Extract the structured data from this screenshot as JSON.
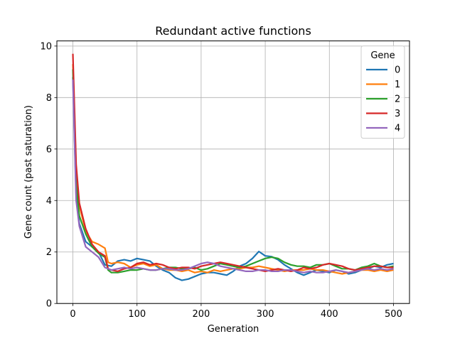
{
  "chart_data": {
    "type": "line",
    "title": "Redundant active functions",
    "xlabel": "Generation",
    "ylabel": "Gene count (past saturation)",
    "xlim": [
      -25,
      525
    ],
    "ylim": [
      0,
      10.2
    ],
    "xticks": [
      0,
      100,
      200,
      300,
      400,
      500
    ],
    "yticks": [
      0,
      2,
      4,
      6,
      8,
      10
    ],
    "grid": true,
    "legend": {
      "title": "Gene",
      "placement": "top-right"
    },
    "series": [
      {
        "name": "0",
        "color": "#1f77b4",
        "points": [
          [
            0,
            8.8
          ],
          [
            5,
            4.2
          ],
          [
            10,
            3.1
          ],
          [
            20,
            2.4
          ],
          [
            30,
            2.2
          ],
          [
            40,
            2.0
          ],
          [
            50,
            1.5
          ],
          [
            60,
            1.45
          ],
          [
            70,
            1.65
          ],
          [
            80,
            1.7
          ],
          [
            90,
            1.65
          ],
          [
            100,
            1.75
          ],
          [
            110,
            1.7
          ],
          [
            120,
            1.65
          ],
          [
            130,
            1.45
          ],
          [
            140,
            1.3
          ],
          [
            150,
            1.2
          ],
          [
            160,
            1.0
          ],
          [
            170,
            0.9
          ],
          [
            180,
            0.95
          ],
          [
            190,
            1.05
          ],
          [
            200,
            1.15
          ],
          [
            210,
            1.2
          ],
          [
            220,
            1.2
          ],
          [
            230,
            1.15
          ],
          [
            240,
            1.1
          ],
          [
            250,
            1.25
          ],
          [
            260,
            1.45
          ],
          [
            270,
            1.55
          ],
          [
            280,
            1.75
          ],
          [
            290,
            2.02
          ],
          [
            300,
            1.85
          ],
          [
            310,
            1.82
          ],
          [
            320,
            1.7
          ],
          [
            330,
            1.5
          ],
          [
            340,
            1.35
          ],
          [
            350,
            1.2
          ],
          [
            360,
            1.1
          ],
          [
            370,
            1.2
          ],
          [
            380,
            1.3
          ],
          [
            390,
            1.25
          ],
          [
            400,
            1.2
          ],
          [
            410,
            1.3
          ],
          [
            420,
            1.25
          ],
          [
            430,
            1.15
          ],
          [
            440,
            1.2
          ],
          [
            450,
            1.3
          ],
          [
            460,
            1.35
          ],
          [
            470,
            1.45
          ],
          [
            480,
            1.4
          ],
          [
            490,
            1.5
          ],
          [
            500,
            1.55
          ]
        ]
      },
      {
        "name": "1",
        "color": "#ff7f0e",
        "points": [
          [
            0,
            9.3
          ],
          [
            5,
            5.2
          ],
          [
            10,
            3.8
          ],
          [
            20,
            2.8
          ],
          [
            30,
            2.4
          ],
          [
            40,
            2.3
          ],
          [
            50,
            2.15
          ],
          [
            55,
            1.6
          ],
          [
            60,
            1.55
          ],
          [
            70,
            1.6
          ],
          [
            80,
            1.55
          ],
          [
            90,
            1.4
          ],
          [
            100,
            1.5
          ],
          [
            110,
            1.55
          ],
          [
            120,
            1.45
          ],
          [
            130,
            1.5
          ],
          [
            140,
            1.35
          ],
          [
            150,
            1.3
          ],
          [
            160,
            1.3
          ],
          [
            170,
            1.25
          ],
          [
            180,
            1.3
          ],
          [
            190,
            1.2
          ],
          [
            200,
            1.25
          ],
          [
            210,
            1.2
          ],
          [
            220,
            1.3
          ],
          [
            230,
            1.25
          ],
          [
            240,
            1.3
          ],
          [
            250,
            1.35
          ],
          [
            260,
            1.35
          ],
          [
            270,
            1.4
          ],
          [
            280,
            1.4
          ],
          [
            290,
            1.45
          ],
          [
            300,
            1.4
          ],
          [
            310,
            1.35
          ],
          [
            320,
            1.3
          ],
          [
            330,
            1.25
          ],
          [
            340,
            1.3
          ],
          [
            350,
            1.3
          ],
          [
            360,
            1.3
          ],
          [
            370,
            1.35
          ],
          [
            380,
            1.3
          ],
          [
            390,
            1.3
          ],
          [
            400,
            1.25
          ],
          [
            410,
            1.2
          ],
          [
            420,
            1.15
          ],
          [
            430,
            1.2
          ],
          [
            440,
            1.25
          ],
          [
            450,
            1.3
          ],
          [
            460,
            1.3
          ],
          [
            470,
            1.25
          ],
          [
            480,
            1.3
          ],
          [
            490,
            1.25
          ],
          [
            500,
            1.3
          ]
        ]
      },
      {
        "name": "2",
        "color": "#2ca02c",
        "points": [
          [
            0,
            9.1
          ],
          [
            5,
            4.6
          ],
          [
            10,
            3.4
          ],
          [
            20,
            2.7
          ],
          [
            30,
            2.2
          ],
          [
            40,
            1.95
          ],
          [
            50,
            1.8
          ],
          [
            55,
            1.3
          ],
          [
            60,
            1.2
          ],
          [
            70,
            1.2
          ],
          [
            80,
            1.25
          ],
          [
            90,
            1.3
          ],
          [
            100,
            1.3
          ],
          [
            110,
            1.35
          ],
          [
            120,
            1.3
          ],
          [
            130,
            1.3
          ],
          [
            140,
            1.35
          ],
          [
            150,
            1.4
          ],
          [
            160,
            1.4
          ],
          [
            170,
            1.35
          ],
          [
            180,
            1.35
          ],
          [
            190,
            1.4
          ],
          [
            200,
            1.3
          ],
          [
            210,
            1.35
          ],
          [
            220,
            1.45
          ],
          [
            230,
            1.55
          ],
          [
            240,
            1.5
          ],
          [
            250,
            1.45
          ],
          [
            260,
            1.4
          ],
          [
            270,
            1.45
          ],
          [
            280,
            1.55
          ],
          [
            290,
            1.65
          ],
          [
            300,
            1.75
          ],
          [
            310,
            1.8
          ],
          [
            320,
            1.75
          ],
          [
            330,
            1.6
          ],
          [
            340,
            1.5
          ],
          [
            350,
            1.45
          ],
          [
            360,
            1.45
          ],
          [
            370,
            1.4
          ],
          [
            380,
            1.5
          ],
          [
            390,
            1.5
          ],
          [
            400,
            1.55
          ],
          [
            410,
            1.45
          ],
          [
            420,
            1.35
          ],
          [
            430,
            1.35
          ],
          [
            440,
            1.3
          ],
          [
            450,
            1.4
          ],
          [
            460,
            1.45
          ],
          [
            470,
            1.55
          ],
          [
            480,
            1.45
          ],
          [
            490,
            1.4
          ],
          [
            500,
            1.45
          ]
        ]
      },
      {
        "name": "3",
        "color": "#d62728",
        "points": [
          [
            0,
            9.7
          ],
          [
            5,
            5.4
          ],
          [
            10,
            3.9
          ],
          [
            20,
            2.9
          ],
          [
            30,
            2.3
          ],
          [
            40,
            2.0
          ],
          [
            50,
            1.85
          ],
          [
            55,
            1.35
          ],
          [
            60,
            1.3
          ],
          [
            70,
            1.25
          ],
          [
            80,
            1.35
          ],
          [
            90,
            1.4
          ],
          [
            100,
            1.55
          ],
          [
            110,
            1.6
          ],
          [
            120,
            1.5
          ],
          [
            130,
            1.55
          ],
          [
            140,
            1.5
          ],
          [
            150,
            1.4
          ],
          [
            160,
            1.35
          ],
          [
            170,
            1.4
          ],
          [
            180,
            1.4
          ],
          [
            190,
            1.35
          ],
          [
            200,
            1.45
          ],
          [
            210,
            1.5
          ],
          [
            220,
            1.55
          ],
          [
            230,
            1.6
          ],
          [
            240,
            1.55
          ],
          [
            250,
            1.5
          ],
          [
            260,
            1.45
          ],
          [
            270,
            1.4
          ],
          [
            280,
            1.35
          ],
          [
            290,
            1.3
          ],
          [
            300,
            1.25
          ],
          [
            310,
            1.3
          ],
          [
            320,
            1.35
          ],
          [
            330,
            1.3
          ],
          [
            340,
            1.25
          ],
          [
            350,
            1.3
          ],
          [
            360,
            1.4
          ],
          [
            370,
            1.35
          ],
          [
            380,
            1.4
          ],
          [
            390,
            1.5
          ],
          [
            400,
            1.55
          ],
          [
            410,
            1.5
          ],
          [
            420,
            1.45
          ],
          [
            430,
            1.35
          ],
          [
            440,
            1.3
          ],
          [
            450,
            1.35
          ],
          [
            460,
            1.4
          ],
          [
            470,
            1.45
          ],
          [
            480,
            1.45
          ],
          [
            490,
            1.4
          ],
          [
            500,
            1.4
          ]
        ]
      },
      {
        "name": "4",
        "color": "#9467bd",
        "points": [
          [
            0,
            8.7
          ],
          [
            5,
            4.0
          ],
          [
            10,
            3.0
          ],
          [
            20,
            2.2
          ],
          [
            30,
            2.0
          ],
          [
            40,
            1.8
          ],
          [
            50,
            1.4
          ],
          [
            60,
            1.3
          ],
          [
            70,
            1.35
          ],
          [
            80,
            1.4
          ],
          [
            90,
            1.35
          ],
          [
            100,
            1.4
          ],
          [
            110,
            1.35
          ],
          [
            120,
            1.3
          ],
          [
            130,
            1.3
          ],
          [
            140,
            1.35
          ],
          [
            150,
            1.35
          ],
          [
            160,
            1.3
          ],
          [
            170,
            1.3
          ],
          [
            180,
            1.35
          ],
          [
            190,
            1.45
          ],
          [
            200,
            1.55
          ],
          [
            210,
            1.6
          ],
          [
            220,
            1.55
          ],
          [
            230,
            1.45
          ],
          [
            240,
            1.4
          ],
          [
            250,
            1.35
          ],
          [
            260,
            1.3
          ],
          [
            270,
            1.25
          ],
          [
            280,
            1.25
          ],
          [
            290,
            1.3
          ],
          [
            300,
            1.3
          ],
          [
            310,
            1.25
          ],
          [
            320,
            1.25
          ],
          [
            330,
            1.3
          ],
          [
            340,
            1.3
          ],
          [
            350,
            1.25
          ],
          [
            360,
            1.2
          ],
          [
            370,
            1.25
          ],
          [
            380,
            1.2
          ],
          [
            390,
            1.2
          ],
          [
            400,
            1.25
          ],
          [
            410,
            1.3
          ],
          [
            420,
            1.25
          ],
          [
            430,
            1.2
          ],
          [
            440,
            1.25
          ],
          [
            450,
            1.3
          ],
          [
            460,
            1.35
          ],
          [
            470,
            1.3
          ],
          [
            480,
            1.35
          ],
          [
            490,
            1.3
          ],
          [
            500,
            1.35
          ]
        ]
      }
    ]
  }
}
